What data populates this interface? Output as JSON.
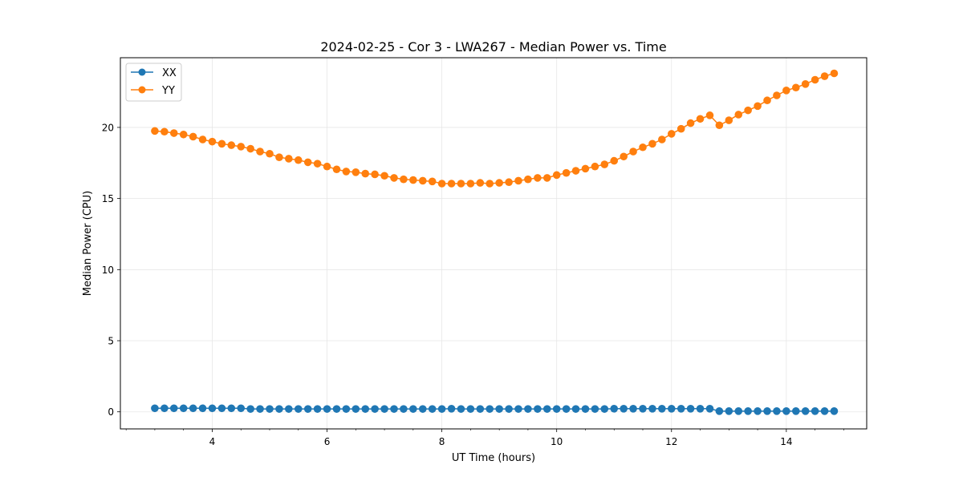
{
  "chart_data": {
    "type": "line",
    "title": "2024-02-25 - Cor 3 - LWA267 - Median Power vs. Time",
    "xlabel": "UT Time (hours)",
    "ylabel": "Median Power (CPU)",
    "xlim": [
      2.4,
      15.4
    ],
    "ylim": [
      -1.2,
      24.9
    ],
    "xticks": [
      4,
      6,
      8,
      10,
      12,
      14
    ],
    "yticks": [
      0,
      5,
      10,
      15,
      20
    ],
    "xtick_labels": [
      "4",
      "6",
      "8",
      "10",
      "12",
      "14"
    ],
    "ytick_labels": [
      "0",
      "5",
      "10",
      "15",
      "20"
    ],
    "grid": true,
    "legend_position": "top-left",
    "series": [
      {
        "name": "XX",
        "color": "#1f77b4",
        "x": [
          3.0,
          3.167,
          3.333,
          3.5,
          3.667,
          3.833,
          4.0,
          4.167,
          4.333,
          4.5,
          4.667,
          4.833,
          5.0,
          5.167,
          5.333,
          5.5,
          5.667,
          5.833,
          6.0,
          6.167,
          6.333,
          6.5,
          6.667,
          6.833,
          7.0,
          7.167,
          7.333,
          7.5,
          7.667,
          7.833,
          8.0,
          8.167,
          8.333,
          8.5,
          8.667,
          8.833,
          9.0,
          9.167,
          9.333,
          9.5,
          9.667,
          9.833,
          10.0,
          10.167,
          10.333,
          10.5,
          10.667,
          10.833,
          11.0,
          11.167,
          11.333,
          11.5,
          11.667,
          11.833,
          12.0,
          12.167,
          12.333,
          12.5,
          12.667,
          12.833,
          13.0,
          13.167,
          13.333,
          13.5,
          13.667,
          13.833,
          14.0,
          14.167,
          14.333,
          14.5,
          14.667,
          14.833
        ],
        "values": [
          0.25,
          0.25,
          0.25,
          0.25,
          0.25,
          0.25,
          0.25,
          0.25,
          0.25,
          0.25,
          0.2,
          0.2,
          0.2,
          0.2,
          0.2,
          0.2,
          0.2,
          0.2,
          0.2,
          0.2,
          0.2,
          0.2,
          0.2,
          0.2,
          0.2,
          0.2,
          0.2,
          0.2,
          0.2,
          0.2,
          0.2,
          0.22,
          0.2,
          0.2,
          0.2,
          0.2,
          0.2,
          0.2,
          0.2,
          0.2,
          0.2,
          0.2,
          0.2,
          0.2,
          0.2,
          0.2,
          0.2,
          0.2,
          0.22,
          0.22,
          0.22,
          0.22,
          0.22,
          0.22,
          0.22,
          0.22,
          0.22,
          0.22,
          0.22,
          0.05,
          0.05,
          0.05,
          0.05,
          0.05,
          0.05,
          0.05,
          0.05,
          0.05,
          0.05,
          0.05,
          0.05,
          0.05
        ]
      },
      {
        "name": "YY",
        "color": "#ff7f0e",
        "x": [
          3.0,
          3.167,
          3.333,
          3.5,
          3.667,
          3.833,
          4.0,
          4.167,
          4.333,
          4.5,
          4.667,
          4.833,
          5.0,
          5.167,
          5.333,
          5.5,
          5.667,
          5.833,
          6.0,
          6.167,
          6.333,
          6.5,
          6.667,
          6.833,
          7.0,
          7.167,
          7.333,
          7.5,
          7.667,
          7.833,
          8.0,
          8.167,
          8.333,
          8.5,
          8.667,
          8.833,
          9.0,
          9.167,
          9.333,
          9.5,
          9.667,
          9.833,
          10.0,
          10.167,
          10.333,
          10.5,
          10.667,
          10.833,
          11.0,
          11.167,
          11.333,
          11.5,
          11.667,
          11.833,
          12.0,
          12.167,
          12.333,
          12.5,
          12.667,
          12.833,
          13.0,
          13.167,
          13.333,
          13.5,
          13.667,
          13.833,
          14.0,
          14.167,
          14.333,
          14.5,
          14.667,
          14.833
        ],
        "values": [
          19.75,
          19.7,
          19.6,
          19.5,
          19.35,
          19.15,
          19.0,
          18.85,
          18.75,
          18.65,
          18.5,
          18.3,
          18.15,
          17.9,
          17.8,
          17.7,
          17.55,
          17.45,
          17.25,
          17.05,
          16.9,
          16.85,
          16.75,
          16.7,
          16.6,
          16.45,
          16.35,
          16.3,
          16.25,
          16.2,
          16.05,
          16.05,
          16.05,
          16.05,
          16.1,
          16.05,
          16.1,
          16.15,
          16.25,
          16.35,
          16.45,
          16.45,
          16.65,
          16.8,
          16.95,
          17.1,
          17.25,
          17.4,
          17.65,
          17.95,
          18.3,
          18.6,
          18.85,
          19.15,
          19.55,
          19.9,
          20.3,
          20.6,
          20.85,
          20.15,
          20.5,
          20.9,
          21.2,
          21.5,
          21.9,
          22.25,
          22.6,
          22.8,
          23.05,
          23.35,
          23.6,
          23.8
        ]
      }
    ]
  }
}
